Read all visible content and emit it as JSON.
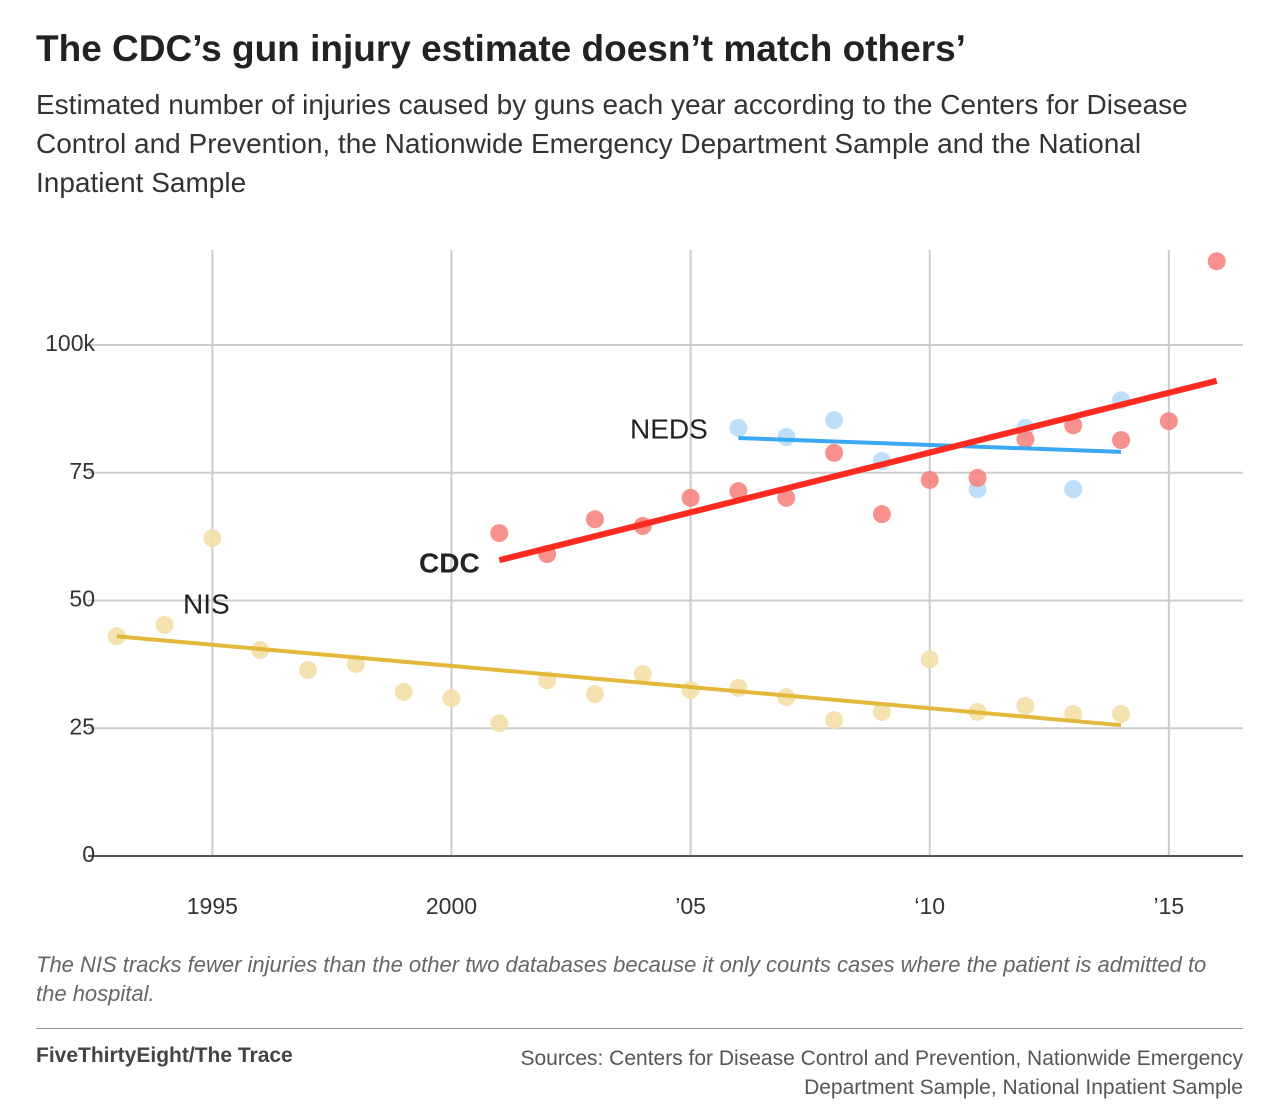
{
  "chart_data": {
    "type": "scatter",
    "title": "The CDC’s gun injury estimate doesn’t match others’",
    "subtitle": "Estimated number of injuries caused by guns each year according to the Centers for Disease Control and Prevention, the Nationwide Emergency Department Sample and the National Inpatient Sample",
    "note": "The NIS tracks fewer injuries than the other two databases because it only counts cases where the patient is admitted to the hospital.",
    "credit": "FiveThirtyEight/The Trace",
    "source": "Sources: Centers for Disease Control and Prevention, Nationwide Emergency Department Sample, National Inpatient Sample",
    "xlim": [
      1992.4,
      2016.55
    ],
    "xticks": [
      1995,
      2000,
      {
        "value": 2005,
        "label": "’05"
      },
      {
        "value": 2010,
        "label": "‘10"
      },
      {
        "value": 2015,
        "label": "’15"
      }
    ],
    "ylim": [
      0,
      118.6
    ],
    "yticks": [
      0,
      25,
      50,
      75,
      {
        "value": 100,
        "label": "100k"
      }
    ],
    "grid": true,
    "series": [
      {
        "name": "NIS",
        "color": "#f3dfa8",
        "line_color": "#e2b93b",
        "x": [
          1993,
          1994,
          1995,
          1996,
          1997,
          1998,
          1999,
          2000,
          2001,
          2002,
          2003,
          2004,
          2005,
          2006,
          2007,
          2008,
          2009,
          2010,
          2011,
          2012,
          2013,
          2014
        ],
        "values": [
          43,
          45.2,
          62.2,
          40.3,
          36.4,
          37.6,
          32.1,
          30.9,
          26.0,
          34.4,
          31.7,
          35.6,
          32.5,
          32.9,
          31.1,
          26.6,
          28.2,
          38.5,
          28.2,
          29.4,
          27.8,
          27.8
        ],
        "trend_x": [
          1993,
          2014
        ],
        "trend": [
          43,
          25.6
        ]
      },
      {
        "name": "NEDS",
        "color": "#b6dcfa",
        "line_color": "#3aa9f4",
        "x": [
          2006,
          2007,
          2008,
          2009,
          2011,
          2012,
          2013,
          2014
        ],
        "values": [
          83.8,
          82.0,
          85.3,
          77.3,
          71.8,
          83.8,
          71.8,
          89.2
        ],
        "trend_x": [
          2006,
          2014
        ],
        "trend": [
          81.8,
          79.1
        ]
      },
      {
        "name": "CDC",
        "color": "#f7847e",
        "line_color": "#ff2a1f",
        "x": [
          2001,
          2002,
          2003,
          2004,
          2005,
          2006,
          2007,
          2008,
          2009,
          2010,
          2011,
          2012,
          2013,
          2014,
          2015,
          2016
        ],
        "values": [
          63.2,
          59.1,
          65.9,
          64.6,
          70.1,
          71.4,
          70.1,
          78.9,
          66.9,
          73.6,
          74.0,
          81.6,
          84.3,
          81.4,
          85.1,
          116.4
        ],
        "trend_x": [
          2001,
          2016
        ],
        "trend": [
          57.9,
          93.0
        ]
      }
    ]
  }
}
